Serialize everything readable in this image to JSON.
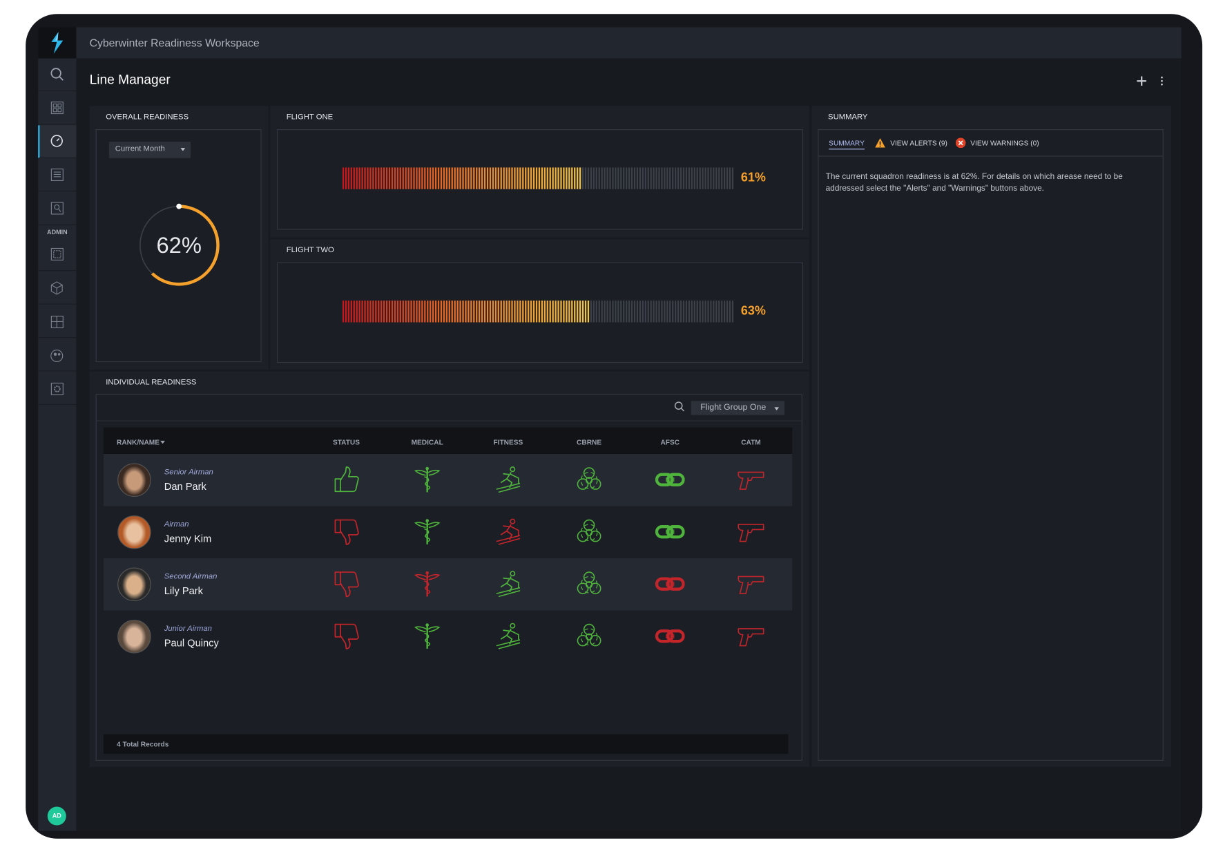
{
  "header": {
    "workspace": "Cyberwinter Readiness Workspace"
  },
  "sidebar": {
    "section_label": "ADMIN",
    "avatar": "AD"
  },
  "page": {
    "title": "Line Manager"
  },
  "overall": {
    "title": "OVERALL READINESS",
    "period": "Current Month",
    "readiness": {
      "value": 62,
      "label": "62%"
    },
    "color": "#f5a12c"
  },
  "flights": [
    {
      "title": "FLIGHT ONE",
      "readiness": {
        "value": 61,
        "label": "61%"
      }
    },
    {
      "title": "FLIGHT TWO",
      "readiness": {
        "value": 63,
        "label": "63%"
      }
    }
  ],
  "summary": {
    "title": "SUMMARY",
    "tabs": [
      "SUMMARY",
      "VIEW ALERTS (9)",
      "VIEW WARNINGS (0)"
    ],
    "text": "The current squadron readiness is at 62%. For details on which arease need to be addressed select the \"Alerts\" and \"Warnings\" buttons above."
  },
  "individual": {
    "title": "INDIVIDUAL READINESS",
    "filter": "Flight Group One",
    "columns": [
      "RANK/NAME",
      "STATUS",
      "MEDICAL",
      "FITNESS",
      "CBRNE",
      "AFSC",
      "CATM"
    ],
    "pass_color": "#4fb43c",
    "fail_color": "#c4252b",
    "rows": [
      {
        "rank": "Senior Airman",
        "name": "Dan Park",
        "pass": [
          true,
          true,
          true,
          true,
          true,
          false
        ]
      },
      {
        "rank": "Airman",
        "name": "Jenny Kim",
        "pass": [
          false,
          true,
          false,
          true,
          true,
          false
        ]
      },
      {
        "rank": "Second Airman",
        "name": "Lily Park",
        "pass": [
          false,
          false,
          true,
          true,
          false,
          false
        ]
      },
      {
        "rank": "Junior Airman",
        "name": "Paul Quincy",
        "pass": [
          false,
          true,
          true,
          true,
          false,
          false
        ]
      }
    ],
    "footer": "4 Total Records"
  }
}
